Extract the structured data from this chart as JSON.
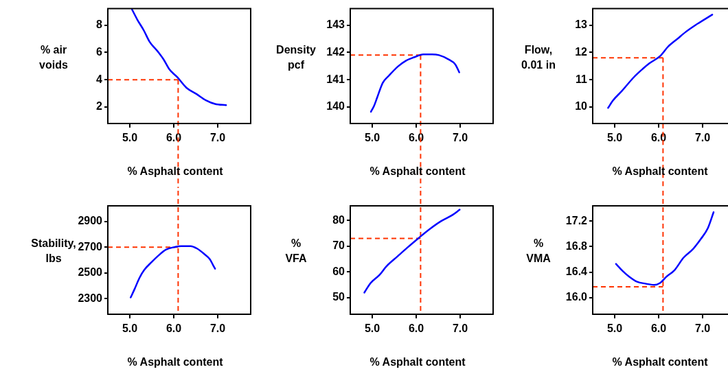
{
  "chart_data": [
    {
      "type": "line",
      "xlabel": "% Asphalt content",
      "ylabel": "% air\nvoids",
      "xlim": [
        4.5,
        7.75
      ],
      "xticks": [
        {
          "value": 5,
          "label": "5.0"
        },
        {
          "value": 6,
          "label": "6.0"
        },
        {
          "value": 7,
          "label": "7.0"
        }
      ],
      "ylim": [
        0.8,
        9.2
      ],
      "yticks": [
        2,
        4,
        6,
        8
      ],
      "series": [
        {
          "color": "#0000ff",
          "x": [
            5.05,
            5.17,
            5.32,
            5.45,
            5.64,
            5.77,
            5.9,
            6.08,
            6.29,
            6.52,
            6.73,
            6.94,
            7.19
          ],
          "values": [
            9.14,
            8.4,
            7.6,
            6.78,
            6.05,
            5.48,
            4.76,
            4.19,
            3.41,
            2.95,
            2.5,
            2.23,
            2.14
          ]
        }
      ],
      "ref_lines": [
        {
          "axis": "x",
          "value": 6.1,
          "color": "#ff3300",
          "line_style": "dashed"
        },
        {
          "axis": "y",
          "value": 4,
          "color": "#ff3300",
          "line_style": "dashed"
        }
      ]
    },
    {
      "type": "line",
      "xlabel": "% Asphalt content",
      "ylabel": "Density\npcf",
      "xlim": [
        4.5,
        7.75
      ],
      "xticks": [
        {
          "value": 5,
          "label": "5.0"
        },
        {
          "value": 6,
          "label": "6.0"
        },
        {
          "value": 7,
          "label": "7.0"
        }
      ],
      "ylim": [
        139.4,
        143.6
      ],
      "yticks": [
        140,
        141,
        142,
        143
      ],
      "series": [
        {
          "color": "#0000ff",
          "x": [
            4.97,
            5.04,
            5.11,
            5.24,
            5.38,
            5.58,
            5.77,
            5.95,
            6.16,
            6.36,
            6.52,
            6.73,
            6.89,
            6.98
          ],
          "values": [
            139.83,
            140.04,
            140.34,
            140.89,
            141.15,
            141.48,
            141.7,
            141.82,
            141.93,
            141.93,
            141.9,
            141.75,
            141.56,
            141.27
          ]
        }
      ],
      "ref_lines": [
        {
          "axis": "x",
          "value": 6.1,
          "color": "#ff3300",
          "line_style": "dashed"
        },
        {
          "axis": "y",
          "value": 141.9,
          "color": "#ff3300",
          "line_style": "dashed"
        }
      ]
    },
    {
      "type": "line",
      "xlabel": "% Asphalt content",
      "ylabel": "Flow,\n0.01 in",
      "xlim": [
        4.5,
        7.75
      ],
      "xticks": [
        {
          "value": 5,
          "label": "5.0"
        },
        {
          "value": 6,
          "label": "6.0"
        },
        {
          "value": 7,
          "label": "7.0"
        }
      ],
      "ylim": [
        9.4,
        13.6
      ],
      "yticks": [
        10,
        11,
        12,
        13
      ],
      "series": [
        {
          "color": "#0000ff",
          "x": [
            4.85,
            4.96,
            5.17,
            5.44,
            5.64,
            5.79,
            6.03,
            6.22,
            6.43,
            6.61,
            6.84,
            7.22
          ],
          "values": [
            9.97,
            10.24,
            10.6,
            11.1,
            11.4,
            11.6,
            11.86,
            12.22,
            12.5,
            12.74,
            13.0,
            13.38
          ]
        }
      ],
      "ref_lines": [
        {
          "axis": "x",
          "value": 6.1,
          "color": "#ff3300",
          "line_style": "dashed"
        },
        {
          "axis": "y",
          "value": 11.8,
          "color": "#ff3300",
          "line_style": "dashed"
        }
      ]
    },
    {
      "type": "line",
      "xlabel": "% Asphalt content",
      "ylabel": "Stability,\nlbs",
      "xlim": [
        4.5,
        7.75
      ],
      "xticks": [
        {
          "value": 5,
          "label": "5.0"
        },
        {
          "value": 6,
          "label": "6.0"
        },
        {
          "value": 7,
          "label": "7.0"
        }
      ],
      "ylim": [
        2180,
        3020
      ],
      "yticks": [
        2300,
        2500,
        2700,
        2900
      ],
      "series": [
        {
          "color": "#0000ff",
          "x": [
            5.02,
            5.11,
            5.22,
            5.33,
            5.49,
            5.64,
            5.82,
            6.01,
            6.17,
            6.38,
            6.53,
            6.69,
            6.82,
            6.9,
            6.94
          ],
          "values": [
            2310,
            2376,
            2462,
            2524,
            2582,
            2631,
            2680,
            2700,
            2708,
            2708,
            2689,
            2648,
            2607,
            2557,
            2533
          ]
        }
      ],
      "ref_lines": [
        {
          "axis": "x",
          "value": 6.1,
          "color": "#ff3300",
          "line_style": "dashed"
        },
        {
          "axis": "y",
          "value": 2700,
          "color": "#ff3300",
          "line_style": "dashed"
        }
      ]
    },
    {
      "type": "line",
      "xlabel": "% Asphalt content",
      "ylabel": "%\nVFA",
      "xlim": [
        4.5,
        7.75
      ],
      "xticks": [
        {
          "value": 5,
          "label": "5.0"
        },
        {
          "value": 6,
          "label": "6.0"
        },
        {
          "value": 7,
          "label": "7.0"
        }
      ],
      "ylim": [
        43.5,
        85.7
      ],
      "yticks": [
        50,
        60,
        70,
        80
      ],
      "series": [
        {
          "color": "#0000ff",
          "x": [
            4.82,
            4.96,
            5.17,
            5.32,
            5.58,
            5.79,
            6.05,
            6.31,
            6.57,
            6.83,
            6.99
          ],
          "values": [
            51.9,
            55.6,
            58.9,
            62.1,
            66.1,
            69.3,
            73.1,
            76.7,
            79.8,
            82.2,
            84.2
          ]
        }
      ],
      "ref_lines": [
        {
          "axis": "x",
          "value": 6.1,
          "color": "#ff3300",
          "line_style": "dashed"
        },
        {
          "axis": "y",
          "value": 73,
          "color": "#ff3300",
          "line_style": "dashed"
        }
      ]
    },
    {
      "type": "line",
      "xlabel": "% Asphalt content",
      "ylabel": "%\nVMA",
      "xlim": [
        4.5,
        7.75
      ],
      "xticks": [
        {
          "value": 5,
          "label": "5.0"
        },
        {
          "value": 6,
          "label": "6.0"
        },
        {
          "value": 7,
          "label": "7.0"
        }
      ],
      "ylim": [
        15.74,
        17.44
      ],
      "yticks": [
        {
          "value": 16,
          "label": "16.0"
        },
        16.4,
        16.8,
        17.2
      ],
      "series": [
        {
          "color": "#0000ff",
          "x": [
            5.03,
            5.18,
            5.33,
            5.51,
            5.7,
            5.9,
            6.03,
            6.18,
            6.36,
            6.57,
            6.78,
            6.96,
            7.12,
            7.25
          ],
          "values": [
            16.53,
            16.42,
            16.33,
            16.25,
            16.22,
            16.2,
            16.23,
            16.33,
            16.43,
            16.63,
            16.76,
            16.92,
            17.09,
            17.34
          ]
        }
      ],
      "ref_lines": [
        {
          "axis": "x",
          "value": 6.1,
          "color": "#ff3300",
          "line_style": "dashed"
        },
        {
          "axis": "y",
          "value": 16.17,
          "color": "#ff3300",
          "line_style": "dashed"
        }
      ]
    }
  ]
}
